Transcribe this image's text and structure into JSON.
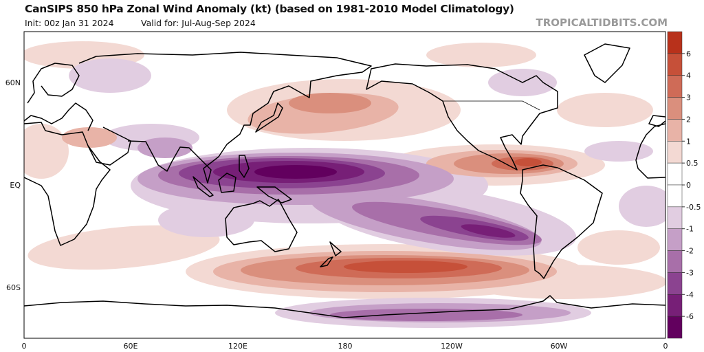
{
  "header": {
    "title": "CanSIPS 850 hPa Zonal Wind Anomaly (kt) (based on 1981-2010 Model Climatology)",
    "init": "Init: 00z Jan 31 2024",
    "valid": "Valid for: Jul-Aug-Sep 2024",
    "watermark": "TROPICALTIDBITS.COM"
  },
  "map": {
    "lon_ticks": [
      "0",
      "60E",
      "120E",
      "180",
      "120W",
      "60W",
      "0"
    ],
    "lat_ticks": [
      "60N",
      "EQ",
      "60S"
    ]
  },
  "colorbar": {
    "colors": [
      "#b8311b",
      "#c65039",
      "#cf6b57",
      "#da8f7d",
      "#e8b3a7",
      "#f3d9d3",
      "#ffffff",
      "#ffffff",
      "#e1cde1",
      "#c59fc7",
      "#a86fa9",
      "#8b4390",
      "#771f77",
      "#62005e"
    ],
    "labels": [
      "6",
      "4",
      "3",
      "2",
      "1",
      "0.5",
      "0",
      "-0.5",
      "-1",
      "-2",
      "-3",
      "-4",
      "-6"
    ]
  }
}
